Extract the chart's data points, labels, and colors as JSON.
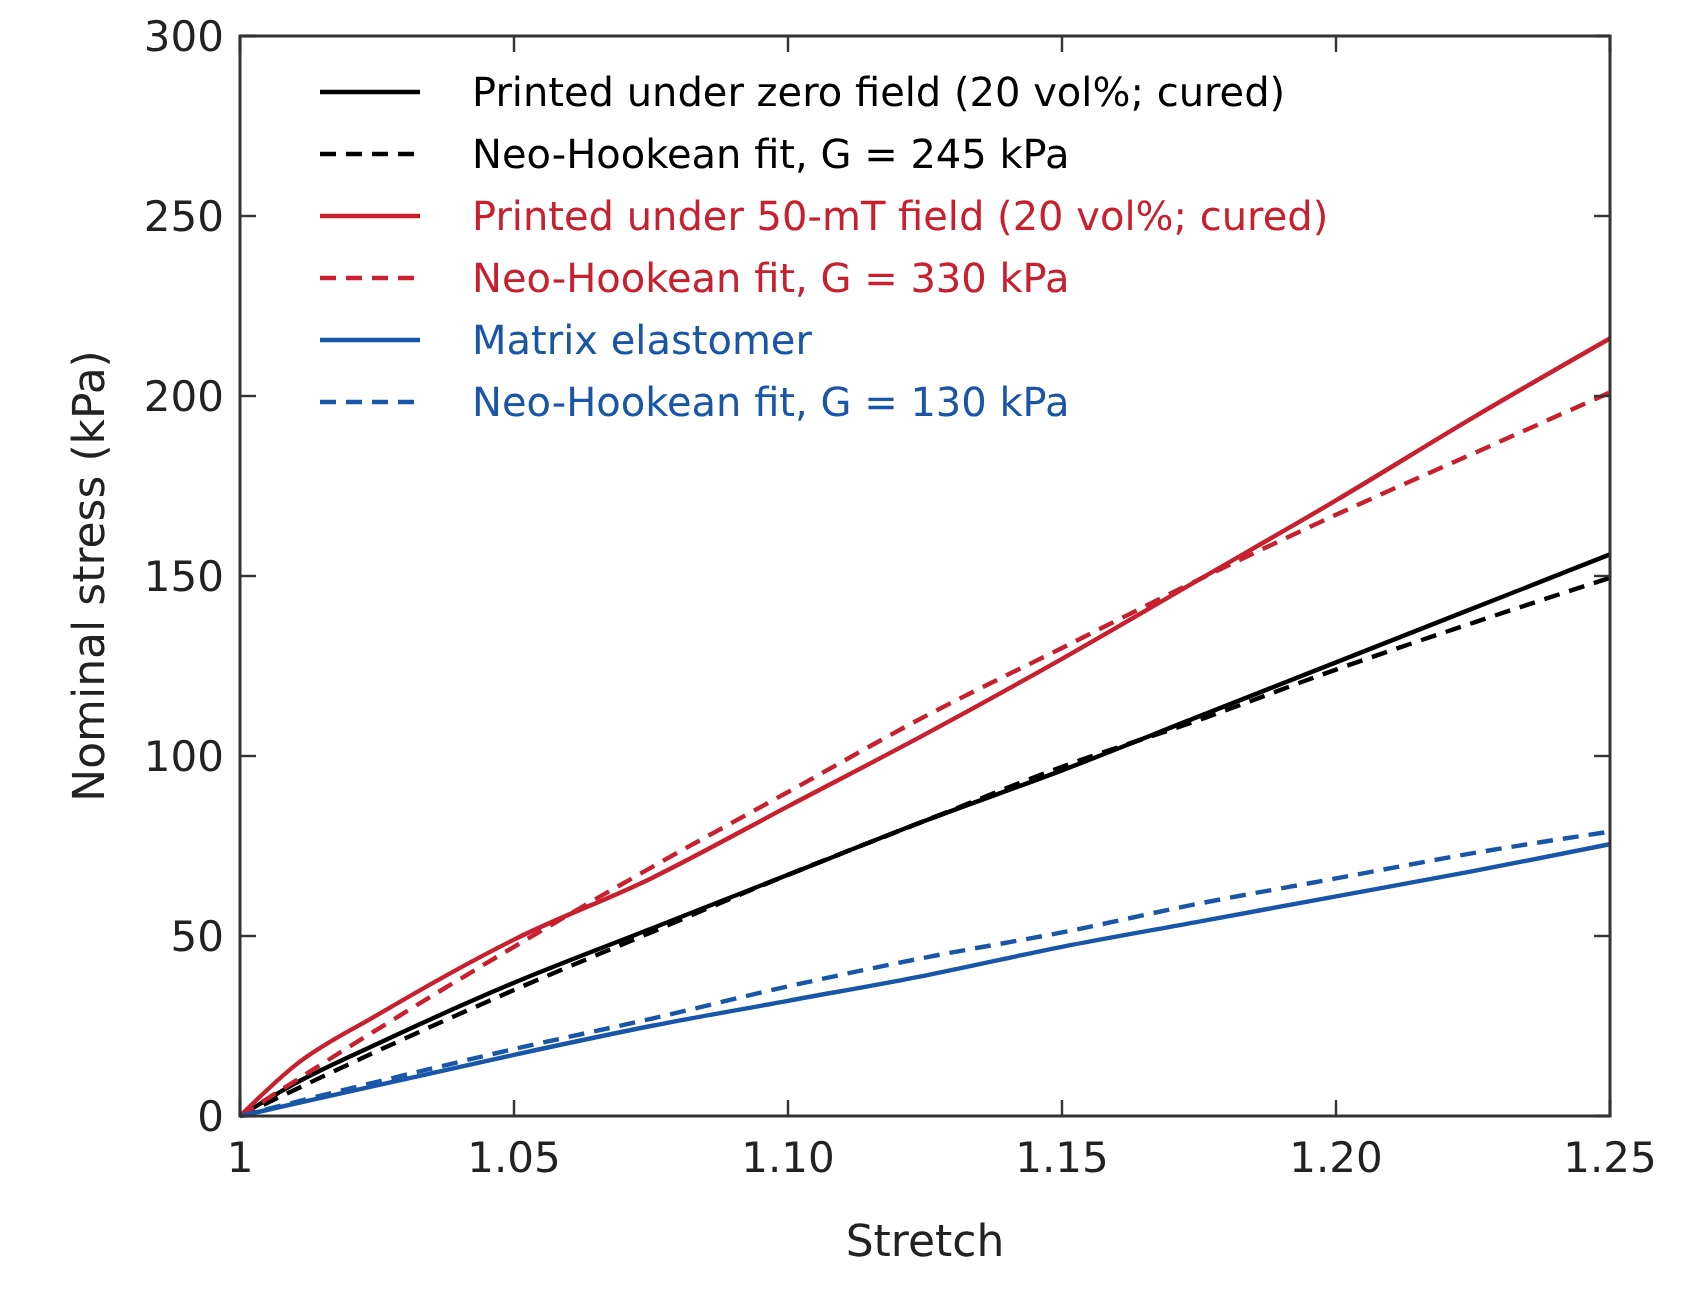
{
  "chart_data": {
    "type": "line",
    "xlabel": "Stretch",
    "ylabel": "Nominal stress (kPa)",
    "xlim": [
      1,
      1.25
    ],
    "ylim": [
      0,
      300
    ],
    "xticks": [
      1,
      1.05,
      {
        "value": 1.1,
        "label": "1.10"
      },
      1.15,
      {
        "value": 1.2,
        "label": "1.20"
      },
      1.25
    ],
    "yticks": [
      0,
      50,
      100,
      150,
      200,
      250,
      300
    ],
    "legend": "top left",
    "grid": false,
    "series": [
      {
        "name": "Printed under zero field (20 vol%; cured)",
        "color": "#000000",
        "line_style": "solid",
        "x": [
          1,
          1.01,
          1.025,
          1.05,
          1.075,
          1.1,
          1.125,
          1.15,
          1.175,
          1.2,
          1.225,
          1.25
        ],
        "values": [
          0,
          9,
          20,
          37,
          52,
          67,
          82,
          96,
          111,
          126,
          141,
          156
        ]
      },
      {
        "name": "Neo-Hookean fit, G = 245 kPa",
        "color": "#000000",
        "line_style": "dashed",
        "x": [
          1,
          1.025,
          1.05,
          1.075,
          1.1,
          1.125,
          1.15,
          1.175,
          1.2,
          1.225,
          1.25
        ],
        "values": [
          0,
          18,
          35,
          51,
          67,
          82,
          97,
          110,
          124,
          137,
          149.5
        ]
      },
      {
        "name": "Printed under 50-mT field (20 vol%; cured)",
        "color": "#c8202f",
        "line_style": "solid",
        "x": [
          1,
          1.01,
          1.025,
          1.05,
          1.075,
          1.1,
          1.125,
          1.15,
          1.175,
          1.2,
          1.225,
          1.25
        ],
        "values": [
          0,
          14,
          28,
          49,
          66,
          86,
          106,
          127,
          149,
          171,
          194,
          216
        ]
      },
      {
        "name": "Neo-Hookean fit, G = 330 kPa",
        "color": "#c8202f",
        "line_style": "dashed",
        "x": [
          1,
          1.025,
          1.05,
          1.075,
          1.1,
          1.125,
          1.15,
          1.175,
          1.2,
          1.225,
          1.25
        ],
        "values": [
          0,
          24,
          47,
          69,
          90,
          111,
          130,
          149,
          167,
          184,
          201
        ]
      },
      {
        "name": "Matrix elastomer",
        "color": "#1a56a8",
        "line_style": "solid",
        "x": [
          1,
          1.025,
          1.05,
          1.075,
          1.1,
          1.125,
          1.15,
          1.175,
          1.2,
          1.225,
          1.25
        ],
        "values": [
          0,
          8.5,
          17,
          25,
          32,
          39,
          47,
          54,
          61,
          68,
          75.5
        ]
      },
      {
        "name": "Neo-Hookean fit, G = 130 kPa",
        "color": "#1a56a8",
        "line_style": "dashed",
        "x": [
          1,
          1.025,
          1.05,
          1.075,
          1.1,
          1.125,
          1.15,
          1.175,
          1.2,
          1.225,
          1.25
        ],
        "values": [
          0,
          9.5,
          18.6,
          27,
          36,
          44,
          51,
          59,
          66,
          73,
          79
        ]
      }
    ]
  }
}
